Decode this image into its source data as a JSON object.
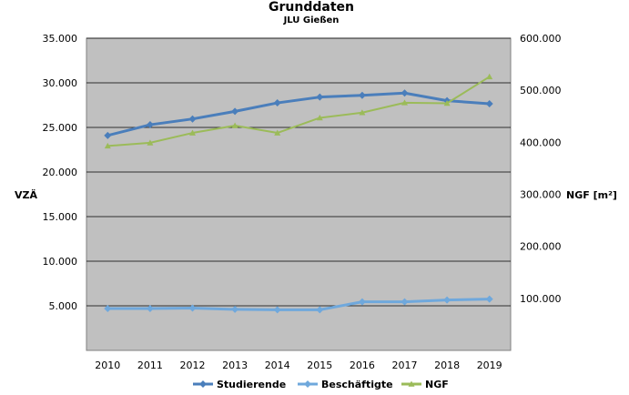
{
  "chart_data": {
    "type": "line",
    "title": "Grunddaten",
    "subtitle": "JLU Gießen",
    "categories": [
      "2010",
      "2011",
      "2012",
      "2013",
      "2014",
      "2015",
      "2016",
      "2017",
      "2018",
      "2019"
    ],
    "y_left": {
      "label": "VZÄ",
      "range": [
        0,
        35000
      ],
      "ticks": [
        5000,
        10000,
        15000,
        20000,
        25000,
        30000,
        35000
      ],
      "tick_labels": [
        "5.000",
        "10.000",
        "15.000",
        "20.000",
        "25.000",
        "30.000",
        "35.000"
      ]
    },
    "y_right": {
      "label": "NGF [m²]",
      "range": [
        0,
        600000
      ],
      "ticks": [
        100000,
        200000,
        300000,
        400000,
        500000,
        600000
      ],
      "tick_labels": [
        "100.000",
        "200.000",
        "300.000",
        "400.000",
        "500.000",
        "600.000"
      ]
    },
    "series": [
      {
        "name": "Studierende",
        "axis": "left",
        "color": "#4a7ebb",
        "marker": "diamond",
        "values": [
          24100,
          25300,
          25950,
          26800,
          27750,
          28400,
          28600,
          28850,
          28000,
          27650
        ]
      },
      {
        "name": "Beschäftigte",
        "axis": "left",
        "color": "#6fa8dc",
        "marker": "diamond",
        "values": [
          4700,
          4700,
          4750,
          4600,
          4550,
          4550,
          5450,
          5450,
          5650,
          5750
        ]
      },
      {
        "name": "NGF",
        "axis": "right",
        "color": "#9bbb59",
        "marker": "triangle",
        "values": [
          393000,
          399000,
          418000,
          432000,
          418000,
          447000,
          457000,
          476000,
          475000,
          526000
        ]
      }
    ],
    "grid": true,
    "legend_position": "bottom",
    "plot_background": "#c0c0c0"
  }
}
